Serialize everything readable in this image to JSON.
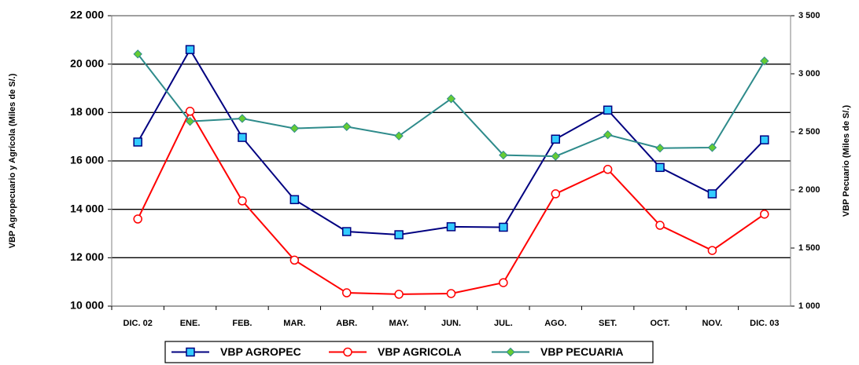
{
  "chart_data": {
    "type": "line",
    "y_label": "VBP Agropecuario y Agrícola (Miles de S/.)",
    "y2_label": "VBP Pecuario (Miles de S/.)",
    "categories": [
      "DIC. 02",
      "ENE.",
      "FEB.",
      "MAR.",
      "ABR.",
      "MAY.",
      "JUN.",
      "JUL.",
      "AGO.",
      "SET.",
      "OCT.",
      "NOV.",
      "DIC. 03"
    ],
    "series": [
      {
        "name": "VBP AGROPEC",
        "color": "#000080",
        "marker": "square",
        "marker_fill": "#33ccff",
        "values": [
          16780,
          20600,
          16970,
          14400,
          13080,
          12950,
          13280,
          13260,
          16900,
          18100,
          15730,
          14640,
          16870
        ]
      },
      {
        "name": "VBP AGRICOLA",
        "color": "#ff0000",
        "marker": "circle",
        "marker_fill": "#ffffff",
        "values": [
          13600,
          18050,
          14350,
          11900,
          10550,
          10490,
          10520,
          10970,
          14640,
          15650,
          13340,
          12300,
          13800
        ]
      },
      {
        "name": "VBP PECUARIA",
        "color": "#2e8b8b",
        "marker": "diamond",
        "marker_fill": "#66cc33",
        "axis": "y2",
        "values": [
          3170,
          2590,
          2615,
          2530,
          2545,
          2465,
          2785,
          2300,
          2290,
          2475,
          2360,
          2365,
          3110
        ]
      }
    ],
    "ylim": [
      10000,
      22000
    ],
    "yticks": [
      {
        "value": 10000,
        "label": "10 000"
      },
      {
        "value": 12000,
        "label": "12 000"
      },
      {
        "value": 14000,
        "label": "14 000"
      },
      {
        "value": 16000,
        "label": "16 000"
      },
      {
        "value": 18000,
        "label": "18 000"
      },
      {
        "value": 20000,
        "label": "20 000"
      },
      {
        "value": 22000,
        "label": "22 000"
      }
    ],
    "y2lim": [
      1000,
      3500
    ],
    "y2ticks": [
      {
        "value": 1000,
        "label": "1 000"
      },
      {
        "value": 1500,
        "label": "1 500"
      },
      {
        "value": 2000,
        "label": "2 000"
      },
      {
        "value": 2500,
        "label": "2 500"
      },
      {
        "value": 3000,
        "label": "3 000"
      },
      {
        "value": 3500,
        "label": "3 500"
      }
    ],
    "grid": true,
    "legend": "bottom"
  }
}
